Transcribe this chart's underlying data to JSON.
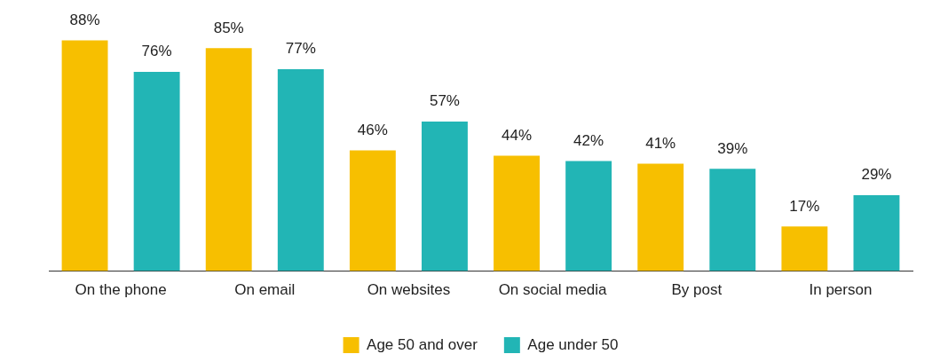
{
  "chart_data": {
    "type": "bar",
    "categories": [
      "On the phone",
      "On email",
      "On websites",
      "On social media",
      "By post",
      "In person"
    ],
    "series": [
      {
        "name": "Age 50 and over",
        "color": "#f7bf00",
        "values": [
          88,
          85,
          46,
          44,
          41,
          17
        ],
        "value_labels": [
          "88%",
          "85%",
          "46%",
          "44%",
          "41%",
          "17%"
        ]
      },
      {
        "name": "Age under 50",
        "color": "#22b5b5",
        "values": [
          76,
          77,
          57,
          42,
          39,
          29
        ],
        "value_labels": [
          "76%",
          "77%",
          "57%",
          "42%",
          "39%",
          "29%"
        ]
      }
    ],
    "legend": "bottom"
  }
}
